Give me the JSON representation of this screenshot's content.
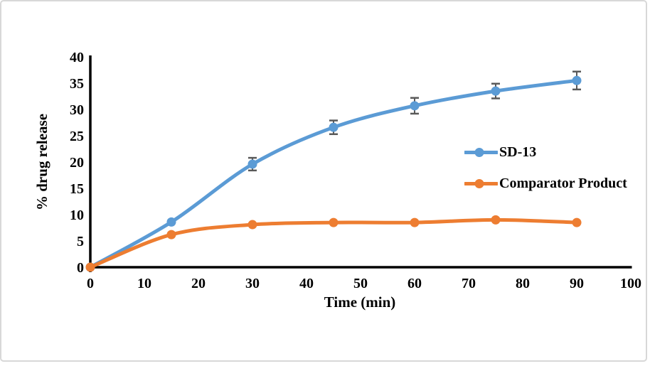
{
  "figure": {
    "background": "#ffffff",
    "border_color": "#d8d8d8"
  },
  "chart_data": {
    "type": "line",
    "title": "",
    "xlabel": "Time (min)",
    "ylabel": "% drug release",
    "x": [
      0,
      15,
      30,
      45,
      60,
      75,
      90
    ],
    "series": [
      {
        "name": "SD-13",
        "color": "#5B9BD5",
        "values": [
          0,
          8.6,
          19.6,
          26.6,
          30.7,
          33.5,
          35.5
        ],
        "error": [
          0,
          0,
          1.2,
          1.3,
          1.5,
          1.4,
          1.7
        ]
      },
      {
        "name": "Comparator Product",
        "color": "#ED7D31",
        "values": [
          0,
          6.2,
          8.1,
          8.5,
          8.5,
          9.0,
          8.5
        ],
        "error": [
          0,
          0,
          0,
          0,
          0,
          0,
          0
        ]
      }
    ],
    "xlim": [
      0,
      100
    ],
    "ylim": [
      0,
      40
    ],
    "x_ticks": [
      0,
      10,
      20,
      30,
      40,
      50,
      60,
      70,
      80,
      90,
      100
    ],
    "y_ticks": [
      0,
      5,
      10,
      15,
      20,
      25,
      30,
      35,
      40
    ],
    "grid": false,
    "smooth_lines": true,
    "marker": "circle",
    "legend_position": "right-middle",
    "error_bar_color": "#595959",
    "axis_color": "#000000"
  }
}
